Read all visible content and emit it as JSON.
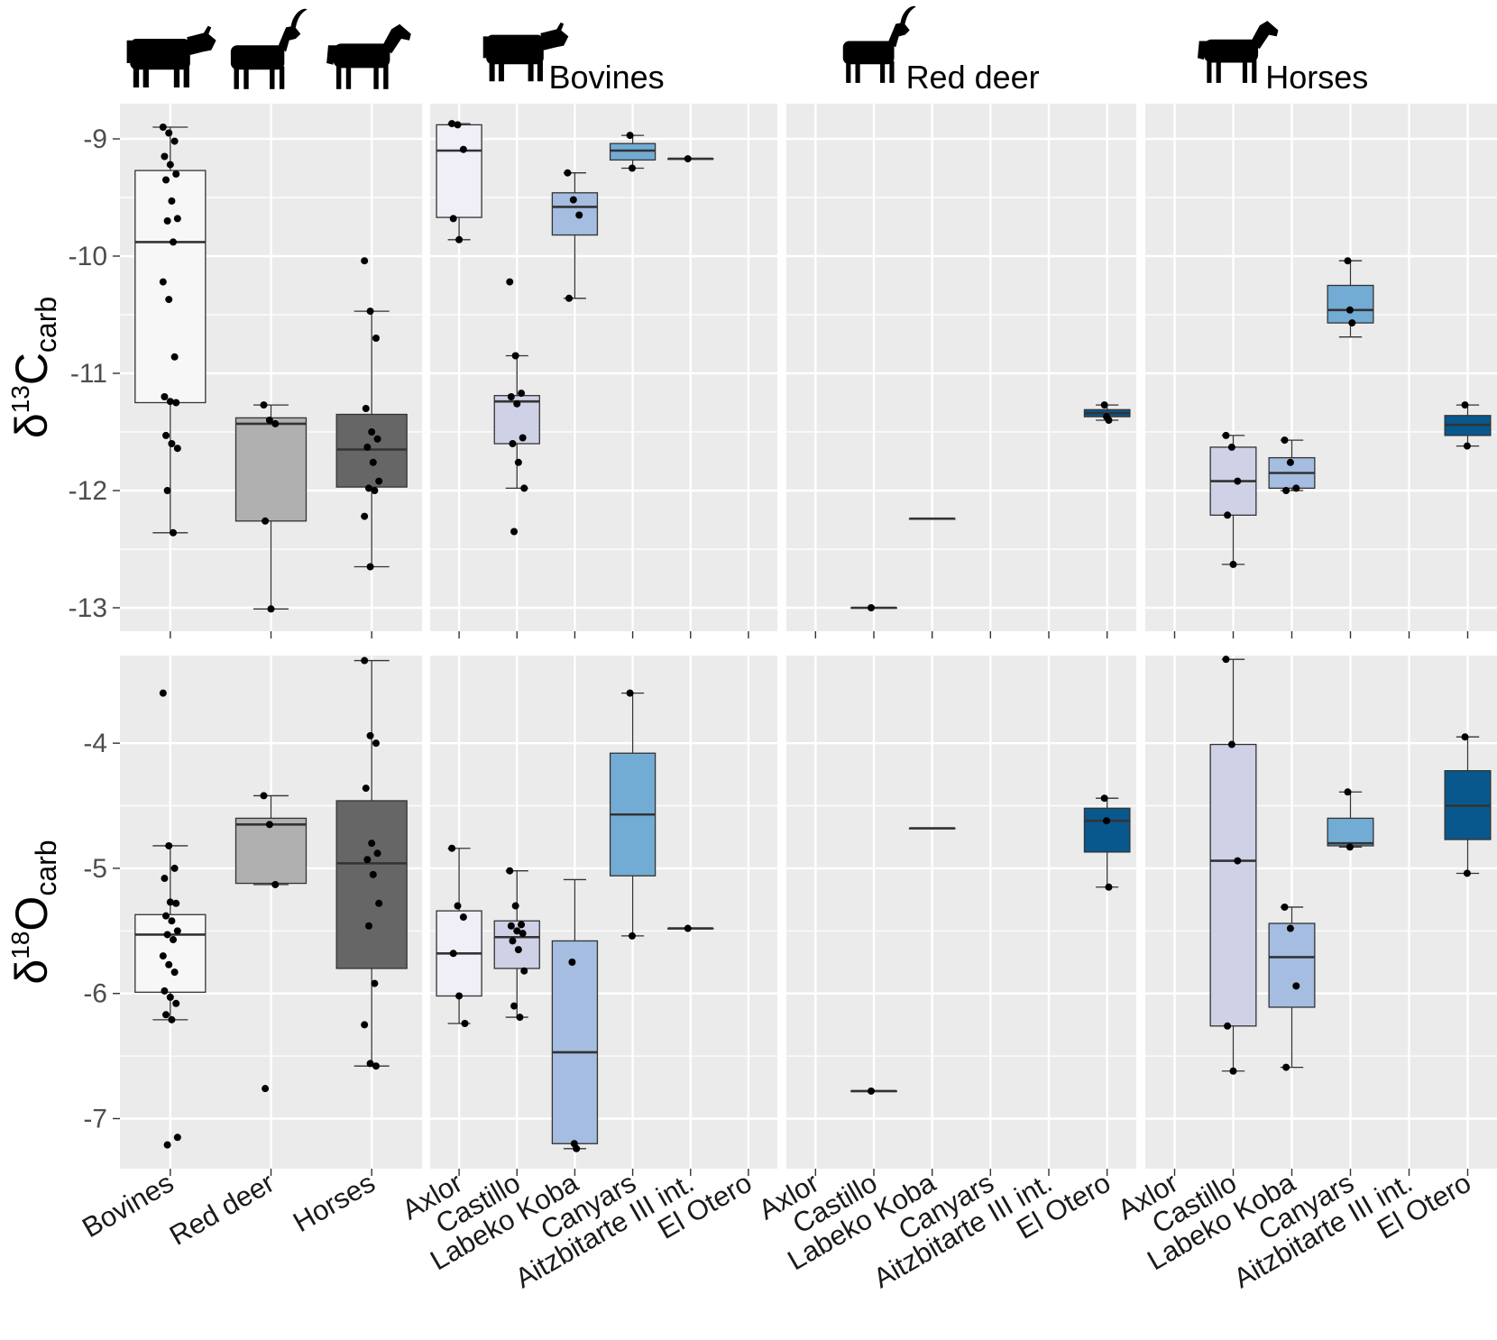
{
  "colors": {
    "panel_bg": "#ebebeb",
    "grid": "#ffffff",
    "point": "#000000",
    "species": {
      "Bovines": "#f7f7f7",
      "Red deer": "#b0b0b0",
      "Horses": "#666666"
    },
    "sites": {
      "Axlor": "#f0eef6",
      "Castillo": "#cfd1e7",
      "Labeko Koba": "#a4bde0",
      "Canyars": "#72acd4",
      "Aitzbitarte III int.": "#3b8bc2",
      "El Otero": "#08588e"
    }
  },
  "icons": {
    "Bovines": "cow-icon",
    "Red deer": "deer-icon",
    "Horses": "horse-icon"
  },
  "chart_data": [
    {
      "type": "box",
      "variable": "d13C_carb",
      "ylabel": "δ13Ccarb",
      "ylim": [
        -13.2,
        -8.7
      ],
      "yticks": [
        -9,
        -10,
        -11,
        -12,
        -13
      ],
      "ytick_labels": [
        "-9",
        "-10",
        "-11",
        "-12",
        "-13"
      ],
      "panels": [
        {
          "title": "",
          "categories": [
            "Bovines",
            "Red deer",
            "Horses"
          ],
          "boxes": [
            {
              "cat": "Bovines",
              "fill": "Bovines",
              "min": -12.36,
              "q1": -11.25,
              "median": -9.88,
              "q3": -9.27,
              "max": -8.9,
              "points": [
                -8.9,
                -8.95,
                -9.02,
                -9.15,
                -9.22,
                -9.3,
                -9.35,
                -9.53,
                -9.68,
                -9.7,
                -9.88,
                -10.22,
                -10.37,
                -10.86,
                -11.2,
                -11.24,
                -11.25,
                -11.53,
                -11.6,
                -11.64,
                -12.0,
                -12.36
              ]
            },
            {
              "cat": "Red deer",
              "fill": "Red deer",
              "min": -13.01,
              "q1": -12.26,
              "median": -11.43,
              "q3": -11.38,
              "max": -11.27,
              "points": [
                -11.27,
                -11.4,
                -11.43,
                -12.26,
                -13.01
              ]
            },
            {
              "cat": "Horses",
              "fill": "Horses",
              "min": -12.65,
              "q1": -11.97,
              "median": -11.65,
              "q3": -11.35,
              "max": -10.47,
              "points": [
                -10.04,
                -10.47,
                -10.7,
                -11.3,
                -11.5,
                -11.56,
                -11.63,
                -11.76,
                -11.92,
                -11.98,
                -12.0,
                -12.22,
                -12.65
              ]
            }
          ]
        },
        {
          "title": "Bovines",
          "icon": "cow-icon",
          "categories": [
            "Axlor",
            "Castillo",
            "Labeko Koba",
            "Canyars",
            "Aitzbitarte III int.",
            "El Otero"
          ],
          "boxes": [
            {
              "cat": "Axlor",
              "fill": "Axlor",
              "min": -9.86,
              "q1": -9.67,
              "median": -9.1,
              "q3": -8.88,
              "max": -8.87,
              "points": [
                -8.87,
                -8.88,
                -9.09,
                -9.68,
                -9.86
              ]
            },
            {
              "cat": "Castillo",
              "fill": "Castillo",
              "min": -11.98,
              "q1": -11.6,
              "median": -11.24,
              "q3": -11.19,
              "max": -10.85,
              "points": [
                -10.22,
                -10.85,
                -11.17,
                -11.2,
                -11.26,
                -11.55,
                -11.6,
                -11.76,
                -11.98,
                -12.35
              ]
            },
            {
              "cat": "Labeko Koba",
              "fill": "Labeko Koba",
              "min": -10.36,
              "q1": -9.82,
              "median": -9.58,
              "q3": -9.46,
              "max": -9.29,
              "points": [
                -9.29,
                -9.52,
                -9.65,
                -10.36
              ]
            },
            {
              "cat": "Canyars",
              "fill": "Canyars",
              "min": -9.25,
              "q1": -9.18,
              "median": -9.1,
              "q3": -9.04,
              "max": -8.97,
              "points": [
                -8.97,
                -9.25
              ]
            },
            {
              "cat": "Aitzbitarte III int.",
              "fill": "Aitzbitarte III int.",
              "min": -9.17,
              "q1": -9.17,
              "median": -9.17,
              "q3": -9.17,
              "max": -9.17,
              "points": [
                -9.17
              ]
            },
            {
              "cat": "El Otero",
              "fill": "El Otero",
              "empty": true,
              "points": []
            }
          ]
        },
        {
          "title": "Red deer",
          "icon": "deer-icon",
          "categories": [
            "Axlor",
            "Castillo",
            "Labeko Koba",
            "Canyars",
            "Aitzbitarte III int.",
            "El Otero"
          ],
          "boxes": [
            {
              "cat": "Axlor",
              "fill": "Axlor",
              "empty": true,
              "points": []
            },
            {
              "cat": "Castillo",
              "fill": "Castillo",
              "min": -13.0,
              "q1": -13.0,
              "median": -13.0,
              "q3": -13.0,
              "max": -13.0,
              "points": [
                -13.0
              ]
            },
            {
              "cat": "Labeko Koba",
              "fill": "Labeko Koba",
              "min": -12.24,
              "q1": -12.24,
              "median": -12.24,
              "q3": -12.24,
              "max": -12.24,
              "points": []
            },
            {
              "cat": "Canyars",
              "fill": "Canyars",
              "empty": true,
              "points": []
            },
            {
              "cat": "Aitzbitarte III int.",
              "fill": "Aitzbitarte III int.",
              "empty": true,
              "points": []
            },
            {
              "cat": "El Otero",
              "fill": "El Otero",
              "min": -11.4,
              "q1": -11.37,
              "median": -11.34,
              "q3": -11.31,
              "max": -11.27,
              "points": [
                -11.27,
                -11.37,
                -11.4
              ]
            }
          ]
        },
        {
          "title": "Horses",
          "icon": "horse-icon",
          "categories": [
            "Axlor",
            "Castillo",
            "Labeko Koba",
            "Canyars",
            "Aitzbitarte III int.",
            "El Otero"
          ],
          "boxes": [
            {
              "cat": "Axlor",
              "fill": "Axlor",
              "empty": true,
              "points": []
            },
            {
              "cat": "Castillo",
              "fill": "Castillo",
              "min": -12.63,
              "q1": -12.21,
              "median": -11.92,
              "q3": -11.63,
              "max": -11.53,
              "points": [
                -11.53,
                -11.63,
                -11.92,
                -12.21,
                -12.63
              ]
            },
            {
              "cat": "Labeko Koba",
              "fill": "Labeko Koba",
              "min": -12.0,
              "q1": -11.98,
              "median": -11.85,
              "q3": -11.72,
              "max": -11.57,
              "points": [
                -11.57,
                -11.76,
                -11.98,
                -12.0
              ]
            },
            {
              "cat": "Canyars",
              "fill": "Canyars",
              "min": -10.69,
              "q1": -10.57,
              "median": -10.46,
              "q3": -10.25,
              "max": -10.04,
              "points": [
                -10.04,
                -10.46,
                -10.57
              ]
            },
            {
              "cat": "Aitzbitarte III int.",
              "fill": "Aitzbitarte III int.",
              "empty": true,
              "points": []
            },
            {
              "cat": "El Otero",
              "fill": "El Otero",
              "min": -11.62,
              "q1": -11.53,
              "median": -11.44,
              "q3": -11.36,
              "max": -11.27,
              "points": [
                -11.27,
                -11.62
              ]
            }
          ]
        }
      ]
    },
    {
      "type": "box",
      "variable": "d18O_carb",
      "ylabel": "δ18Ocarb",
      "ylim": [
        -7.4,
        -3.3
      ],
      "yticks": [
        -4,
        -5,
        -6,
        -7
      ],
      "ytick_labels": [
        "-4",
        "-5",
        "-6",
        "-7"
      ],
      "panels": [
        {
          "title": "",
          "categories": [
            "Bovines",
            "Red deer",
            "Horses"
          ],
          "boxes": [
            {
              "cat": "Bovines",
              "fill": "Bovines",
              "min": -6.21,
              "q1": -5.99,
              "median": -5.53,
              "q3": -5.37,
              "max": -4.82,
              "points": [
                -3.6,
                -4.82,
                -5.0,
                -5.08,
                -5.27,
                -5.28,
                -5.38,
                -5.42,
                -5.5,
                -5.53,
                -5.57,
                -5.7,
                -5.77,
                -5.83,
                -5.98,
                -6.03,
                -6.08,
                -6.17,
                -6.21,
                -7.15,
                -7.21
              ]
            },
            {
              "cat": "Red deer",
              "fill": "Red deer",
              "min": -5.13,
              "q1": -5.12,
              "median": -4.65,
              "q3": -4.6,
              "max": -4.42,
              "points": [
                -4.42,
                -4.65,
                -5.13,
                -6.76
              ]
            },
            {
              "cat": "Horses",
              "fill": "Horses",
              "min": -6.58,
              "q1": -5.8,
              "median": -4.96,
              "q3": -4.46,
              "max": -3.34,
              "points": [
                -3.34,
                -3.94,
                -4.0,
                -4.36,
                -4.8,
                -4.88,
                -4.93,
                -5.05,
                -5.28,
                -5.46,
                -5.92,
                -6.25,
                -6.56,
                -6.58
              ]
            }
          ]
        },
        {
          "title": "Bovines",
          "icon": "cow-icon",
          "categories": [
            "Axlor",
            "Castillo",
            "Labeko Koba",
            "Canyars",
            "Aitzbitarte III int.",
            "El Otero"
          ],
          "boxes": [
            {
              "cat": "Axlor",
              "fill": "Axlor",
              "min": -6.24,
              "q1": -6.02,
              "median": -5.68,
              "q3": -5.34,
              "max": -4.84,
              "points": [
                -4.84,
                -5.3,
                -5.39,
                -5.68,
                -6.02,
                -6.24
              ]
            },
            {
              "cat": "Castillo",
              "fill": "Castillo",
              "min": -6.19,
              "q1": -5.8,
              "median": -5.55,
              "q3": -5.42,
              "max": -5.02,
              "points": [
                -5.02,
                -5.3,
                -5.45,
                -5.46,
                -5.5,
                -5.52,
                -5.58,
                -5.65,
                -5.82,
                -6.1,
                -6.19
              ]
            },
            {
              "cat": "Labeko Koba",
              "fill": "Labeko Koba",
              "min": -7.24,
              "q1": -7.2,
              "median": -6.47,
              "q3": -5.58,
              "max": -5.09,
              "points": [
                -5.75,
                -7.2,
                -7.24
              ]
            },
            {
              "cat": "Canyars",
              "fill": "Canyars",
              "min": -5.54,
              "q1": -5.06,
              "median": -4.57,
              "q3": -4.08,
              "max": -3.6,
              "points": [
                -3.6,
                -5.54
              ]
            },
            {
              "cat": "Aitzbitarte III int.",
              "fill": "Aitzbitarte III int.",
              "min": -5.48,
              "q1": -5.48,
              "median": -5.48,
              "q3": -5.48,
              "max": -5.48,
              "points": [
                -5.48
              ]
            },
            {
              "cat": "El Otero",
              "fill": "El Otero",
              "empty": true,
              "points": []
            }
          ]
        },
        {
          "title": "Red deer",
          "icon": "deer-icon",
          "categories": [
            "Axlor",
            "Castillo",
            "Labeko Koba",
            "Canyars",
            "Aitzbitarte III int.",
            "El Otero"
          ],
          "boxes": [
            {
              "cat": "Axlor",
              "fill": "Axlor",
              "empty": true,
              "points": []
            },
            {
              "cat": "Castillo",
              "fill": "Castillo",
              "min": -6.78,
              "q1": -6.78,
              "median": -6.78,
              "q3": -6.78,
              "max": -6.78,
              "points": [
                -6.78
              ]
            },
            {
              "cat": "Labeko Koba",
              "fill": "Labeko Koba",
              "min": -4.68,
              "q1": -4.68,
              "median": -4.68,
              "q3": -4.68,
              "max": -4.68,
              "points": []
            },
            {
              "cat": "Canyars",
              "fill": "Canyars",
              "empty": true,
              "points": []
            },
            {
              "cat": "Aitzbitarte III int.",
              "fill": "Aitzbitarte III int.",
              "empty": true,
              "points": []
            },
            {
              "cat": "El Otero",
              "fill": "El Otero",
              "min": -5.15,
              "q1": -4.87,
              "median": -4.62,
              "q3": -4.52,
              "max": -4.44,
              "points": [
                -4.44,
                -4.62,
                -5.15
              ]
            }
          ]
        },
        {
          "title": "Horses",
          "icon": "horse-icon",
          "categories": [
            "Axlor",
            "Castillo",
            "Labeko Koba",
            "Canyars",
            "Aitzbitarte III int.",
            "El Otero"
          ],
          "boxes": [
            {
              "cat": "Axlor",
              "fill": "Axlor",
              "empty": true,
              "points": []
            },
            {
              "cat": "Castillo",
              "fill": "Castillo",
              "min": -6.62,
              "q1": -6.26,
              "median": -4.94,
              "q3": -4.01,
              "max": -3.33,
              "points": [
                -3.33,
                -4.01,
                -4.94,
                -6.26,
                -6.62
              ]
            },
            {
              "cat": "Labeko Koba",
              "fill": "Labeko Koba",
              "min": -6.59,
              "q1": -6.11,
              "median": -5.71,
              "q3": -5.44,
              "max": -5.31,
              "points": [
                -5.31,
                -5.48,
                -5.94,
                -6.59
              ]
            },
            {
              "cat": "Canyars",
              "fill": "Canyars",
              "min": -4.83,
              "q1": -4.82,
              "median": -4.8,
              "q3": -4.6,
              "max": -4.39,
              "points": [
                -4.39,
                -4.83
              ]
            },
            {
              "cat": "Aitzbitarte III int.",
              "fill": "Aitzbitarte III int.",
              "empty": true,
              "points": []
            },
            {
              "cat": "El Otero",
              "fill": "El Otero",
              "min": -5.04,
              "q1": -4.77,
              "median": -4.5,
              "q3": -4.22,
              "max": -3.95,
              "points": [
                -3.95,
                -5.04
              ]
            }
          ]
        }
      ]
    }
  ]
}
